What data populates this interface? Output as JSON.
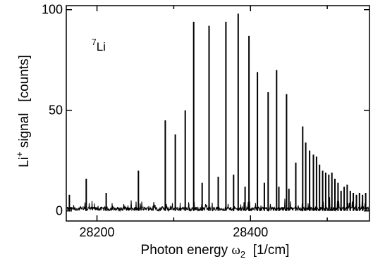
{
  "chart_data": {
    "type": "line",
    "title": "",
    "annotation": {
      "superscript": "7",
      "text": "Li"
    },
    "xlabel": {
      "prefix": "Photon energy ",
      "symbol": "ω",
      "subscript": "2",
      "unit": "  [1/cm]"
    },
    "ylabel": {
      "base": "Li",
      "superscript": "+",
      "rest": " signal   [counts]"
    },
    "xlim": [
      28160,
      28555
    ],
    "ylim": [
      -5,
      102
    ],
    "xticks": [
      28200,
      28400
    ],
    "xtick_labels": [
      "28200",
      "28400"
    ],
    "xminor": [
      28300,
      28500
    ],
    "yticks": [
      0,
      50,
      100
    ],
    "ytick_labels": [
      "0",
      "50",
      "100"
    ],
    "grid": false,
    "noise_level": 2,
    "series": [
      {
        "x": [
          28164,
          28186,
          28212,
          28254,
          28289,
          28302,
          28315,
          28326,
          28337,
          28346,
          28358,
          28368,
          28378,
          28384,
          28393,
          28398,
          28409,
          28418,
          28423,
          28434,
          28437,
          28447,
          28450,
          28459,
          28468,
          28472,
          28477,
          28482,
          28486,
          28490,
          28494,
          28498,
          28502,
          28506,
          28510,
          28514,
          28518,
          28522,
          28526,
          28530,
          28534,
          28538,
          28542,
          28546,
          28550
        ],
        "y": [
          8,
          16,
          9,
          20,
          45,
          38,
          50,
          94,
          14,
          92,
          17,
          94,
          18,
          98,
          12,
          87,
          69,
          14,
          59,
          70,
          12,
          58,
          11,
          24,
          42,
          34,
          30,
          28,
          27,
          23,
          20,
          19,
          18,
          19,
          16,
          14,
          10,
          12,
          13,
          10,
          9,
          8,
          9,
          8,
          9
        ]
      }
    ]
  }
}
